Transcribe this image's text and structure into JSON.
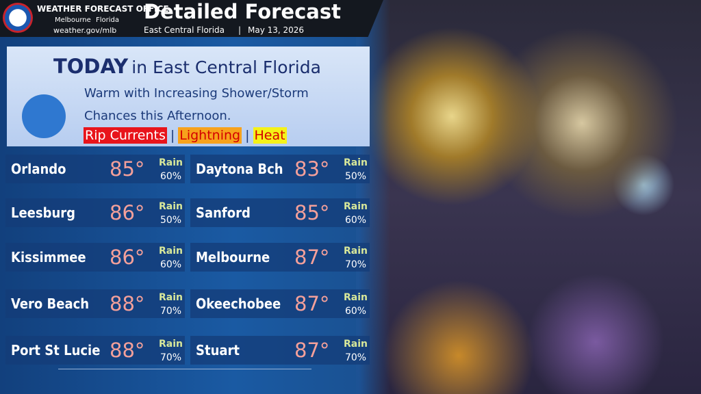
{
  "header": {
    "office": "WEATHER FORECAST OFFICE",
    "city": "Melbourne",
    "state": "Florida",
    "url": "weather.gov/mlb",
    "title": "Detailed Forecast",
    "region": "East Central Florida",
    "separator": "|",
    "date": "May 13, 2026"
  },
  "today": {
    "label": "TODAY",
    "region": "in East Central Florida",
    "description": "Warm with Increasing Shower/Storm Chances this Afternoon.",
    "separator": "|",
    "hazards": [
      {
        "name": "Rip Currents",
        "color": "#e8141b"
      },
      {
        "name": "Lightning",
        "color": "#f7a21c"
      },
      {
        "name": "Heat",
        "color": "#f5f218"
      }
    ]
  },
  "cities": {
    "rain_label": "Rain",
    "rows": [
      [
        {
          "name": "Orlando",
          "temp": "85°",
          "rain": "60%"
        },
        {
          "name": "Daytona Bch",
          "temp": "83°",
          "rain": "50%"
        }
      ],
      [
        {
          "name": "Leesburg",
          "temp": "86°",
          "rain": "50%"
        },
        {
          "name": "Sanford",
          "temp": "85°",
          "rain": "60%"
        }
      ],
      [
        {
          "name": "Kissimmee",
          "temp": "86°",
          "rain": "60%"
        },
        {
          "name": "Melbourne",
          "temp": "87°",
          "rain": "70%"
        }
      ],
      [
        {
          "name": "Vero Beach",
          "temp": "88°",
          "rain": "70%"
        },
        {
          "name": "Okeechobee",
          "temp": "87°",
          "rain": "60%"
        }
      ],
      [
        {
          "name": "Port St Lucie",
          "temp": "88°",
          "rain": "70%"
        },
        {
          "name": "Stuart",
          "temp": "87°",
          "rain": "70%"
        }
      ]
    ]
  }
}
